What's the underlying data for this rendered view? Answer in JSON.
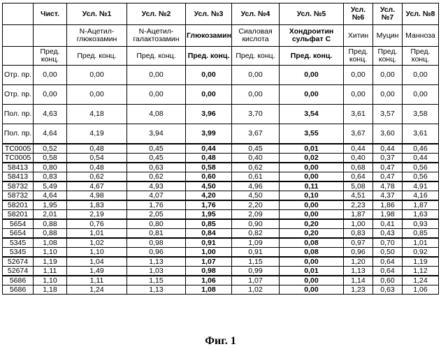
{
  "header": {
    "row1": [
      "",
      "Чист.",
      "Усл. №1",
      "Усл. №2",
      "Усл. №3",
      "Усл. №4",
      "Усл. №5",
      "Усл. №6",
      "Усл. №7",
      "Усл. №8"
    ],
    "row2": [
      "",
      "",
      "N-Ацетил-глюкозамин",
      "N-Ацетил-галактозамин",
      "Глюкозамин",
      "Сиаловая кислота",
      "Хондроитин сульфат С",
      "Хитин",
      "Муцин",
      "Манноза"
    ],
    "row3": [
      "",
      "Пред. конц.",
      "Пред. конц.",
      "Пред. конц.",
      "Пред. конц.",
      "Пред. конц.",
      "Пред. конц.",
      "Пред. конц.",
      "Пред. конц.",
      "Пред. конц."
    ]
  },
  "controls": [
    {
      "label": "Отр. пр.",
      "values": [
        "0,00",
        "0,00",
        "0,00",
        "0,00",
        "0,00",
        "0,00",
        "0,00",
        "0,00",
        "0,00"
      ]
    },
    {
      "label": "Отр. пр.",
      "values": [
        "0,00",
        "0,00",
        "0,00",
        "0,00",
        "0,00",
        "0,00",
        "0,00",
        "0,00",
        "0,00"
      ]
    },
    {
      "label": "Пол. пр.",
      "values": [
        "4,63",
        "4,18",
        "4,08",
        "3,96",
        "3,70",
        "3,54",
        "3,61",
        "3,57",
        "3,58"
      ]
    },
    {
      "label": "Пол. пр.",
      "values": [
        "4,64",
        "4,19",
        "3,94",
        "3,99",
        "3,67",
        "3,55",
        "3,67",
        "3,60",
        "3,61"
      ]
    }
  ],
  "samples": [
    {
      "label": "TC0005",
      "values": [
        "0,52",
        "0,48",
        "0,45",
        "0,44",
        "0,45",
        "0,01",
        "0,44",
        "0,44",
        "0,46"
      ]
    },
    {
      "label": "TC0005",
      "values": [
        "0,58",
        "0,54",
        "0,45",
        "0,48",
        "0,40",
        "0,02",
        "0,40",
        "0,37",
        "0,44"
      ]
    },
    {
      "label": "58413",
      "values": [
        "0,80",
        "0,48",
        "0,63",
        "0,58",
        "0,62",
        "0,00",
        "0,68",
        "0,47",
        "0,56"
      ]
    },
    {
      "label": "58413",
      "values": [
        "0,83",
        "0,62",
        "0,62",
        "0,60",
        "0,61",
        "0,00",
        "0,64",
        "0,47",
        "0,56"
      ]
    },
    {
      "label": "58732",
      "values": [
        "5,49",
        "4,67",
        "4,93",
        "4,50",
        "4,96",
        "0,11",
        "5,08",
        "4,78",
        "4,91"
      ]
    },
    {
      "label": "58732",
      "values": [
        "4,64",
        "4,98",
        "4,07",
        "4,20",
        "4,50",
        "0,10",
        "4,51",
        "4,37",
        "4,16"
      ]
    },
    {
      "label": "58201",
      "values": [
        "1,95",
        "1,83",
        "1,76",
        "1,76",
        "2,20",
        "0,00",
        "2,23",
        "1,86",
        "1,87"
      ]
    },
    {
      "label": "58201",
      "values": [
        "2,01",
        "2,19",
        "2,05",
        "1,95",
        "2,09",
        "0,00",
        "1,87",
        "1,98",
        "1,63"
      ]
    },
    {
      "label": "5654",
      "values": [
        "0,88",
        "0,76",
        "0,80",
        "0,85",
        "0,90",
        "0,20",
        "1,00",
        "0,41",
        "0,93"
      ]
    },
    {
      "label": "5654",
      "values": [
        "0,88",
        "1,01",
        "0,81",
        "0,84",
        "0,82",
        "0,20",
        "0,83",
        "0,43",
        "0,85"
      ]
    },
    {
      "label": "5345",
      "values": [
        "1,08",
        "1,02",
        "0,98",
        "0,91",
        "1,09",
        "0,08",
        "0,97",
        "0,70",
        "1,01"
      ]
    },
    {
      "label": "5345",
      "values": [
        "1,10",
        "1,10",
        "0,96",
        "1,00",
        "0,91",
        "0,08",
        "0,96",
        "0,50",
        "0,92"
      ]
    },
    {
      "label": "52674",
      "values": [
        "1,19",
        "1,04",
        "1,13",
        "1,07",
        "1,15",
        "0,00",
        "1,20",
        "0,64",
        "1,19"
      ]
    },
    {
      "label": "52674",
      "values": [
        "1,11",
        "1,49",
        "1,03",
        "0,98",
        "0,99",
        "0,01",
        "1,13",
        "0,64",
        "1,12"
      ]
    },
    {
      "label": "5686",
      "values": [
        "1,10",
        "1,11",
        "1,15",
        "1,06",
        "1,07",
        "0,00",
        "1,14",
        "0,60",
        "1,24"
      ]
    },
    {
      "label": "5686",
      "values": [
        "1,18",
        "1,24",
        "1,13",
        "1,08",
        "1,02",
        "0,00",
        "1,23",
        "0,63",
        "1,06"
      ]
    }
  ],
  "caption": "Фиг. 1"
}
